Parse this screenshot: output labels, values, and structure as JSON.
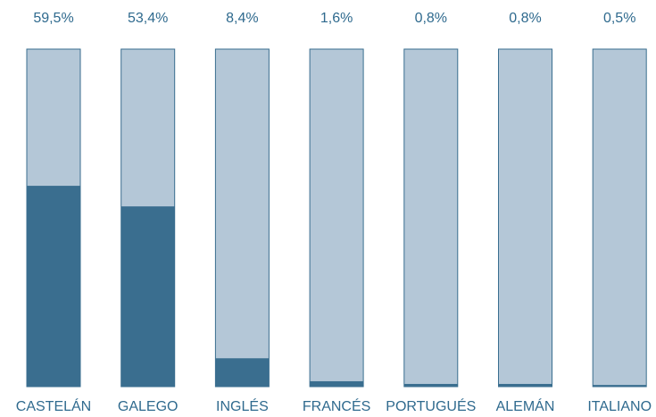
{
  "chart_data": {
    "type": "bar",
    "categories": [
      "CASTELÁN",
      "GALEGO",
      "INGLÉS",
      "FRANCÉS",
      "PORTUGUÉS",
      "ALEMÁN",
      "ITALIANO"
    ],
    "values": [
      59.5,
      53.4,
      8.4,
      1.6,
      0.8,
      0.8,
      0.5
    ],
    "value_labels": [
      "59,5%",
      "53,4%",
      "8,4%",
      "1,6%",
      "0,8%",
      "0,8%",
      "0,5%"
    ],
    "ylim": [
      0,
      100
    ],
    "color": "#3a6e8f",
    "track_color": "#b4c7d7"
  }
}
